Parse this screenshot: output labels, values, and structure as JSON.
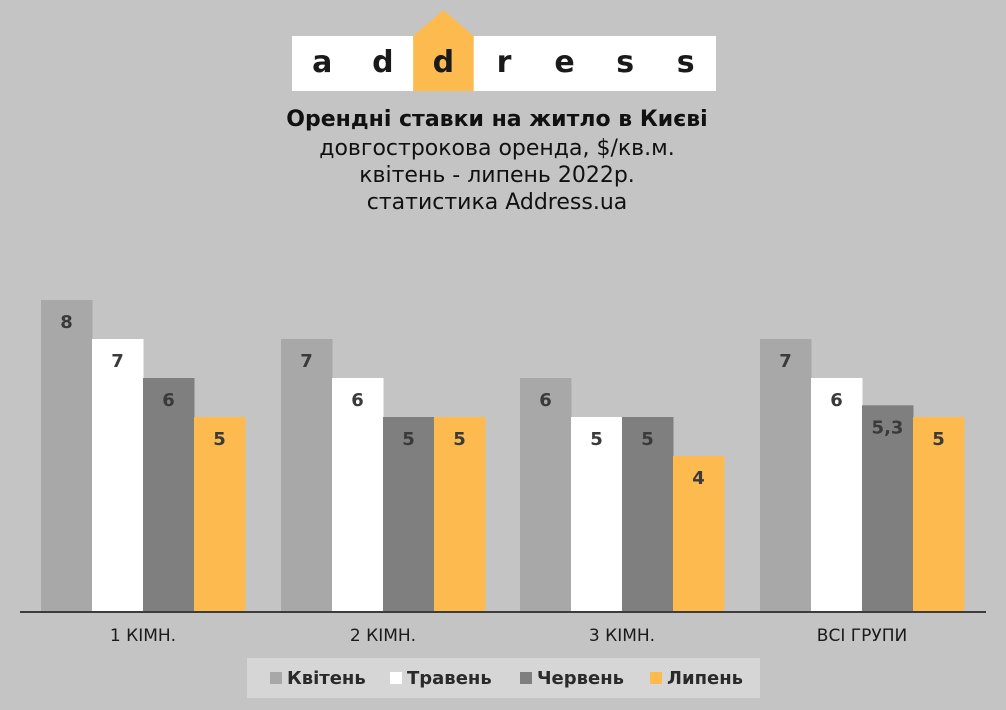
{
  "logo": {
    "letters": [
      "a",
      "d",
      "d",
      "r",
      "e",
      "s",
      "s"
    ],
    "highlight_index": 2,
    "accent": "#fdbb4f"
  },
  "header": {
    "title": "Орендні ставки на житло в Києві",
    "subtitle_lines": [
      "довгострокова оренда, $/кв.м.",
      "квітень - липень 2022р.",
      "статистика  Address.ua"
    ]
  },
  "chart_data": {
    "type": "bar",
    "categories": [
      "1 КІМН.",
      "2 КІМН.",
      "3 КІМН.",
      "ВСІ ГРУПИ"
    ],
    "series": [
      {
        "name": "Квітень",
        "values": [
          8,
          7,
          6,
          7
        ],
        "labels": [
          "8",
          "7",
          "6",
          "7"
        ],
        "color": "#a8a8a8"
      },
      {
        "name": "Травень",
        "values": [
          7,
          6,
          5,
          6
        ],
        "labels": [
          "7",
          "6",
          "5",
          "6"
        ],
        "color": "#ffffff"
      },
      {
        "name": "Червень",
        "values": [
          6,
          5,
          5,
          5.3
        ],
        "labels": [
          "6",
          "5",
          "5",
          "5,3"
        ],
        "color": "#7f7f7f"
      },
      {
        "name": "Липень",
        "values": [
          5,
          5,
          4,
          5
        ],
        "labels": [
          "5",
          "5",
          "4",
          "5"
        ],
        "color": "#fdbb4f"
      }
    ],
    "ylim": [
      0,
      8
    ],
    "grid": false,
    "legend_position": "bottom"
  }
}
